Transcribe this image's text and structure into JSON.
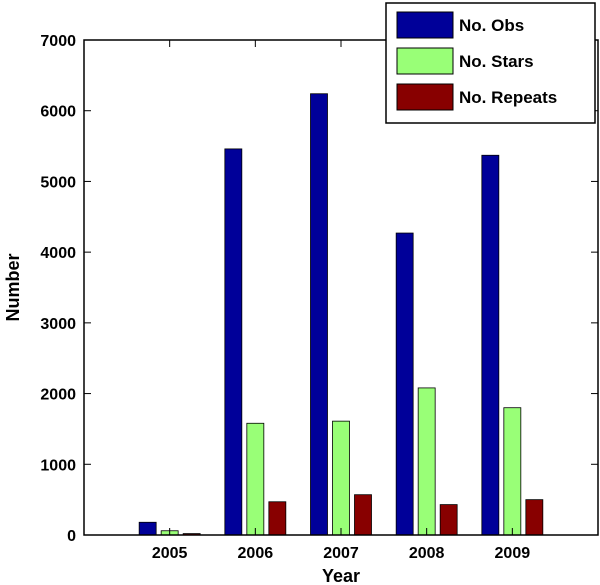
{
  "chart_data": {
    "type": "bar",
    "title": "",
    "xlabel": "Year",
    "ylabel": "Number",
    "categories": [
      "2005",
      "2006",
      "2007",
      "2008",
      "2009"
    ],
    "series": [
      {
        "name": "No. Obs",
        "values": [
          180,
          5460,
          6240,
          4270,
          5370
        ]
      },
      {
        "name": "No. Stars",
        "values": [
          60,
          1580,
          1610,
          2080,
          1800
        ]
      },
      {
        "name": "No. Repeats",
        "values": [
          20,
          470,
          570,
          430,
          500
        ]
      }
    ],
    "ylim": [
      0,
      7000
    ],
    "yticks": [
      0,
      1000,
      2000,
      3000,
      4000,
      5000,
      6000,
      7000
    ],
    "xlim": [
      2004,
      2010
    ],
    "grid": false,
    "legend_position": "top-right",
    "colors": [
      "#000099",
      "#99ff77",
      "#880000"
    ]
  }
}
